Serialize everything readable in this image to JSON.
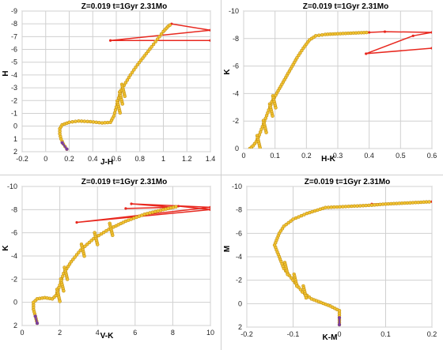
{
  "colors": {
    "marker_fill": "#f1c232",
    "marker_stroke": "#b8860b",
    "track_line": "#6b8e23",
    "blue_loop": "#e8281f",
    "tail": "#7b3f9e",
    "grid": "#d0d0d0"
  },
  "chart_data": [
    {
      "type": "scatter",
      "title": "Z=0.019   t=1Gyr  2.31Mo",
      "xlabel": "J-H",
      "ylabel": "H",
      "xlim": [
        -0.2,
        1.4
      ],
      "ylim": [
        2,
        -9
      ],
      "xticks": [
        "-0.2",
        "0",
        "0.2",
        "0.4",
        "0.6",
        "0.8",
        "1",
        "1.2",
        "1.4"
      ],
      "xtick_values": [
        -0.2,
        0,
        0.2,
        0.4,
        0.6,
        0.8,
        1.0,
        1.2,
        1.4
      ],
      "yticks": [
        "-9",
        "-8",
        "-7",
        "-6",
        "-5",
        "-4",
        "-3",
        "-2",
        "-1",
        "0",
        "1",
        "2"
      ],
      "ytick_values": [
        -9,
        -8,
        -7,
        -6,
        -5,
        -4,
        -3,
        -2,
        -1,
        0,
        1,
        2
      ],
      "grid": true,
      "track": [
        [
          0.18,
          1.8
        ],
        [
          0.15,
          1.4
        ],
        [
          0.13,
          1.0
        ],
        [
          0.12,
          0.6
        ],
        [
          0.12,
          0.2
        ],
        [
          0.14,
          -0.1
        ],
        [
          0.2,
          -0.3
        ],
        [
          0.28,
          -0.4
        ],
        [
          0.38,
          -0.35
        ],
        [
          0.48,
          -0.25
        ],
        [
          0.55,
          -0.3
        ],
        [
          0.58,
          -0.8
        ],
        [
          0.6,
          -1.5
        ],
        [
          0.62,
          -2.2
        ],
        [
          0.64,
          -2.8
        ],
        [
          0.68,
          -3.4
        ],
        [
          0.72,
          -4.0
        ],
        [
          0.78,
          -4.8
        ],
        [
          0.84,
          -5.5
        ],
        [
          0.9,
          -6.2
        ],
        [
          0.95,
          -6.8
        ],
        [
          1.0,
          -7.4
        ],
        [
          1.04,
          -7.8
        ],
        [
          1.07,
          -8.0
        ]
      ],
      "markers_dense": [
        [
          0.6,
          -1.5
        ],
        [
          0.62,
          -2.2
        ],
        [
          0.64,
          -2.8
        ]
      ],
      "loop": [
        [
          1.07,
          -8.0
        ],
        [
          1.4,
          -7.5
        ],
        [
          0.55,
          -6.7
        ],
        [
          1.4,
          -6.7
        ]
      ],
      "tail": [
        [
          0.14,
          1.3
        ],
        [
          0.18,
          1.8
        ]
      ]
    },
    {
      "type": "scatter",
      "title": "Z=0.019   t=1Gyr  2.31Mo",
      "xlabel": "H-K",
      "ylabel": "K",
      "xlim": [
        0,
        0.6
      ],
      "ylim": [
        0,
        -10
      ],
      "xticks": [
        "0",
        "0.1",
        "0.2",
        "0.3",
        "0.4",
        "0.5",
        "0.6"
      ],
      "xtick_values": [
        0,
        0.1,
        0.2,
        0.3,
        0.4,
        0.5,
        0.6
      ],
      "yticks": [
        "-10",
        "-8",
        "-6",
        "-4",
        "-2",
        "0"
      ],
      "ytick_values": [
        -10,
        -8,
        -6,
        -4,
        -2,
        0
      ],
      "grid": true,
      "track": [
        [
          0.02,
          0.0
        ],
        [
          0.03,
          -0.2
        ],
        [
          0.04,
          -0.5
        ],
        [
          0.05,
          -1.0
        ],
        [
          0.06,
          -1.6
        ],
        [
          0.07,
          -2.2
        ],
        [
          0.08,
          -2.8
        ],
        [
          0.09,
          -3.4
        ],
        [
          0.11,
          -4.2
        ],
        [
          0.13,
          -5.0
        ],
        [
          0.15,
          -5.8
        ],
        [
          0.17,
          -6.6
        ],
        [
          0.19,
          -7.3
        ],
        [
          0.21,
          -7.9
        ],
        [
          0.23,
          -8.2
        ],
        [
          0.26,
          -8.3
        ],
        [
          0.3,
          -8.35
        ],
        [
          0.35,
          -8.4
        ],
        [
          0.4,
          -8.45
        ]
      ],
      "markers_dense": [
        [
          0.04,
          -0.5
        ],
        [
          0.06,
          -1.6
        ],
        [
          0.08,
          -2.8
        ],
        [
          0.09,
          -3.4
        ]
      ],
      "loop": [
        [
          0.4,
          -8.45
        ],
        [
          0.45,
          -8.5
        ],
        [
          0.6,
          -8.45
        ],
        [
          0.54,
          -8.2
        ],
        [
          0.39,
          -6.9
        ],
        [
          0.6,
          -7.3
        ]
      ],
      "tail": []
    },
    {
      "type": "scatter",
      "title": "Z=0.019   t=1Gyr  2.31Mo",
      "xlabel": "V-K",
      "ylabel": "K",
      "xlim": [
        0,
        10
      ],
      "ylim": [
        2,
        -10
      ],
      "xticks": [
        "0",
        "2",
        "4",
        "6",
        "8",
        "10"
      ],
      "xtick_values": [
        0,
        2,
        4,
        6,
        8,
        10
      ],
      "yticks": [
        "-10",
        "-8",
        "-6",
        "-4",
        "-2",
        "0",
        "2"
      ],
      "ytick_values": [
        -10,
        -8,
        -6,
        -4,
        -2,
        0,
        2
      ],
      "grid": true,
      "track": [
        [
          0.8,
          1.8
        ],
        [
          0.7,
          1.2
        ],
        [
          0.6,
          0.6
        ],
        [
          0.6,
          0.0
        ],
        [
          0.8,
          -0.3
        ],
        [
          1.2,
          -0.4
        ],
        [
          1.6,
          -0.3
        ],
        [
          1.8,
          -0.6
        ],
        [
          2.0,
          -1.5
        ],
        [
          2.2,
          -2.5
        ],
        [
          2.6,
          -3.5
        ],
        [
          3.1,
          -4.5
        ],
        [
          3.8,
          -5.5
        ],
        [
          4.6,
          -6.3
        ],
        [
          5.5,
          -7.0
        ],
        [
          6.5,
          -7.6
        ],
        [
          7.5,
          -8.0
        ],
        [
          8.3,
          -8.3
        ]
      ],
      "markers_dense": [
        [
          1.8,
          -0.6
        ],
        [
          2.0,
          -1.5
        ],
        [
          2.2,
          -2.5
        ],
        [
          3.1,
          -4.5
        ],
        [
          3.8,
          -5.5
        ],
        [
          4.6,
          -6.3
        ]
      ],
      "loop": [
        [
          8.3,
          -8.3
        ],
        [
          10.0,
          -8.0
        ],
        [
          2.9,
          -6.9
        ],
        [
          10.0,
          -8.2
        ],
        [
          5.8,
          -8.5
        ],
        [
          8.0,
          -8.2
        ],
        [
          5.5,
          -8.1
        ]
      ],
      "tail": [
        [
          0.7,
          1.2
        ],
        [
          0.8,
          1.8
        ]
      ]
    },
    {
      "type": "scatter",
      "title": "Z=0.019   t=1Gyr  2.31Mo",
      "xlabel": "K-M",
      "ylabel": "M",
      "xlim": [
        -0.2,
        0.2
      ],
      "ylim": [
        2,
        -10
      ],
      "xticks": [
        "-0.2",
        "-0.1",
        "0",
        "0.1",
        "0.2"
      ],
      "xtick_values": [
        -0.2,
        -0.1,
        0,
        0.1,
        0.2
      ],
      "yticks": [
        "-10",
        "-8",
        "-6",
        "-4",
        "-2",
        "0",
        "2"
      ],
      "ytick_values": [
        -10,
        -8,
        -6,
        -4,
        -2,
        0,
        2
      ],
      "grid": true,
      "track": [
        [
          0.0,
          1.8
        ],
        [
          0.0,
          1.2
        ],
        [
          0.0,
          0.6
        ],
        [
          -0.02,
          0.2
        ],
        [
          -0.04,
          -0.1
        ],
        [
          -0.06,
          -0.4
        ],
        [
          -0.08,
          -1.0
        ],
        [
          -0.1,
          -2.0
        ],
        [
          -0.12,
          -3.0
        ],
        [
          -0.13,
          -4.0
        ],
        [
          -0.14,
          -5.0
        ],
        [
          -0.13,
          -6.0
        ],
        [
          -0.12,
          -6.6
        ],
        [
          -0.1,
          -7.2
        ],
        [
          -0.07,
          -7.7
        ],
        [
          -0.03,
          -8.2
        ],
        [
          0.02,
          -8.3
        ],
        [
          0.07,
          -8.4
        ],
        [
          0.1,
          -8.5
        ],
        [
          0.2,
          -8.7
        ]
      ],
      "markers_dense": [
        [
          -0.08,
          -1.0
        ],
        [
          -0.1,
          -2.0
        ],
        [
          -0.12,
          -3.0
        ]
      ],
      "loop": [
        [
          0.07,
          -8.5
        ],
        [
          0.2,
          -8.7
        ]
      ],
      "tail": [
        [
          0.0,
          1.2
        ],
        [
          0.0,
          1.8
        ]
      ]
    }
  ]
}
